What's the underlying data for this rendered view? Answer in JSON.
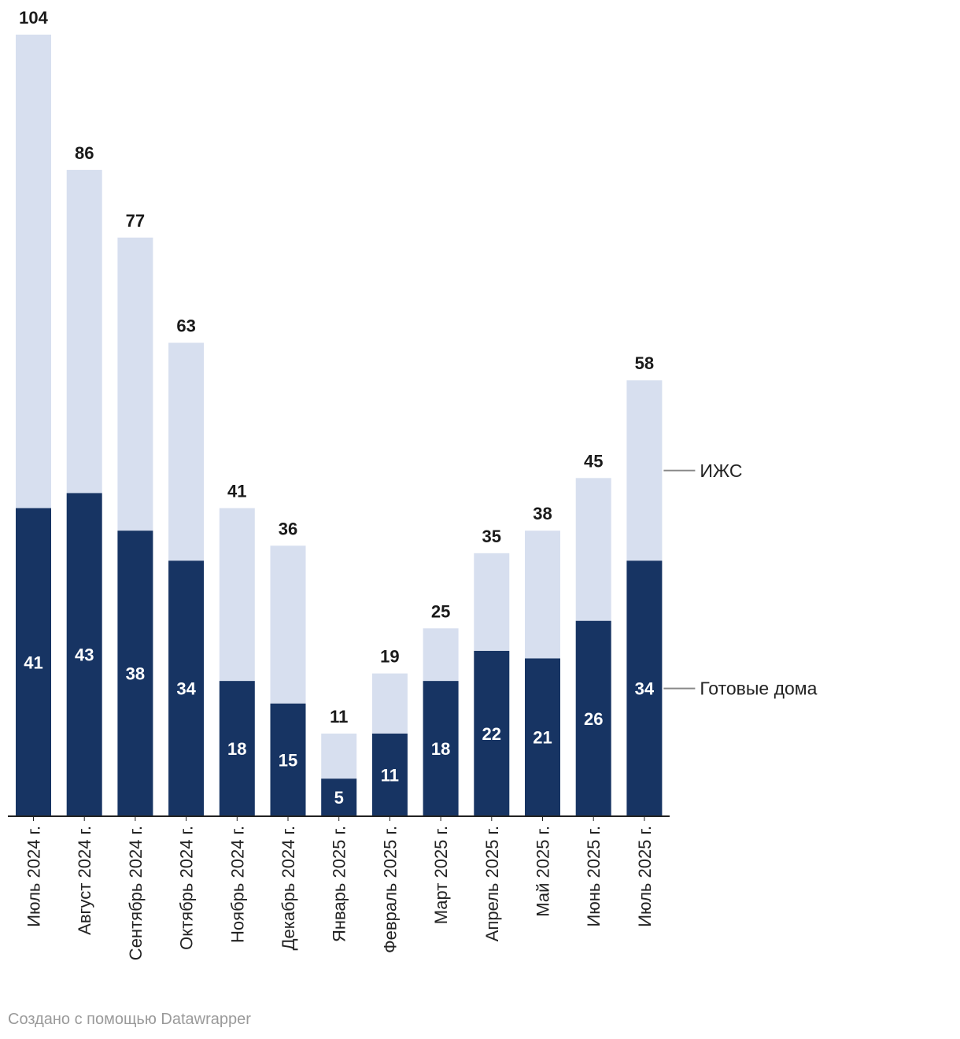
{
  "chart_data": {
    "type": "bar",
    "stacked": true,
    "categories": [
      "Июль 2024 г.",
      "Август 2024 г.",
      "Сентябрь 2024 г.",
      "Октябрь 2024 г.",
      "Ноябрь 2024 г.",
      "Декабрь 2024 г.",
      "Январь 2025 г.",
      "Февраль 2025 г.",
      "Март 2025 г.",
      "Апрель 2025 г.",
      "Май 2025 г.",
      "Июнь 2025 г.",
      "Июль 2025 г."
    ],
    "series": [
      {
        "name": "Готовые дома",
        "color": "#173463",
        "values": [
          41,
          43,
          38,
          34,
          18,
          15,
          5,
          11,
          18,
          22,
          21,
          26,
          34
        ]
      },
      {
        "name": "ИЖС",
        "color": "#d7dfef",
        "values": [
          63,
          43,
          39,
          29,
          23,
          21,
          6,
          8,
          7,
          13,
          17,
          19,
          24
        ]
      }
    ],
    "totals": [
      104,
      86,
      77,
      63,
      41,
      36,
      11,
      19,
      25,
      35,
      38,
      45,
      58
    ],
    "ylim": [
      0,
      104
    ],
    "grid": false,
    "legend": "direct labels right of last bar",
    "title": "",
    "xlabel": "",
    "ylabel": ""
  },
  "credit": "Создано с помощью Datawrapper"
}
